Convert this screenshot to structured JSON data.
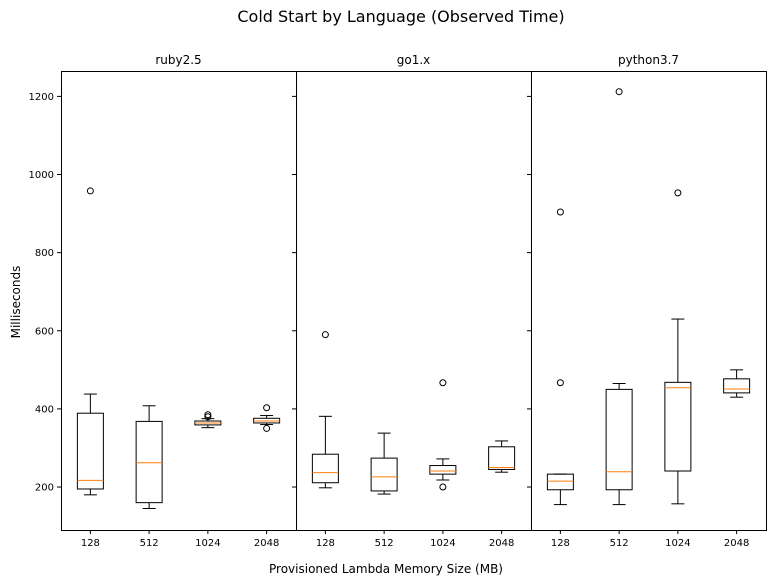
{
  "chart_data": {
    "type": "boxplot",
    "title": "Cold Start by Language (Observed Time)",
    "xlabel": "Provisioned Lambda Memory Size (MB)",
    "ylabel": "Milliseconds",
    "ylim": [
      90,
      1265
    ],
    "yticks": [
      200,
      400,
      600,
      800,
      1000,
      1200
    ],
    "categories": [
      "128",
      "512",
      "1024",
      "2048"
    ],
    "colors": {
      "box": "#000000",
      "median": "#ff7f0e",
      "axis": "#000000",
      "background": "#ffffff"
    },
    "panels": [
      {
        "title": "ruby2.5",
        "boxes": [
          {
            "category": "128",
            "whisker_low": 180,
            "q1": 195,
            "median": 217,
            "q3": 389,
            "whisker_high": 438,
            "fliers": [
              958
            ]
          },
          {
            "category": "512",
            "whisker_low": 145,
            "q1": 160,
            "median": 262,
            "q3": 368,
            "whisker_high": 408,
            "fliers": []
          },
          {
            "category": "1024",
            "whisker_low": 352,
            "q1": 359,
            "median": 364,
            "q3": 369,
            "whisker_high": 375,
            "fliers": [
              380,
              385
            ]
          },
          {
            "category": "2048",
            "whisker_low": 360,
            "q1": 364,
            "median": 369,
            "q3": 376,
            "whisker_high": 383,
            "fliers": [
              350,
              403
            ]
          }
        ]
      },
      {
        "title": "go1.x",
        "boxes": [
          {
            "category": "128",
            "whisker_low": 198,
            "q1": 211,
            "median": 237,
            "q3": 284,
            "whisker_high": 381,
            "fliers": [
              590
            ]
          },
          {
            "category": "512",
            "whisker_low": 182,
            "q1": 190,
            "median": 226,
            "q3": 274,
            "whisker_high": 338,
            "fliers": []
          },
          {
            "category": "1024",
            "whisker_low": 218,
            "q1": 233,
            "median": 241,
            "q3": 255,
            "whisker_high": 272,
            "fliers": [
              200,
              467
            ]
          },
          {
            "category": "2048",
            "whisker_low": 238,
            "q1": 245,
            "median": 250,
            "q3": 303,
            "whisker_high": 318,
            "fliers": []
          }
        ]
      },
      {
        "title": "python3.7",
        "boxes": [
          {
            "category": "128",
            "whisker_low": 155,
            "q1": 193,
            "median": 215,
            "q3": 233,
            "whisker_high": 233,
            "fliers": [
              467,
              904
            ]
          },
          {
            "category": "512",
            "whisker_low": 155,
            "q1": 193,
            "median": 239,
            "q3": 450,
            "whisker_high": 465,
            "fliers": [
              1212
            ]
          },
          {
            "category": "1024",
            "whisker_low": 157,
            "q1": 241,
            "median": 454,
            "q3": 468,
            "whisker_high": 630,
            "fliers": [
              953
            ]
          },
          {
            "category": "2048",
            "whisker_low": 430,
            "q1": 441,
            "median": 451,
            "q3": 477,
            "whisker_high": 500,
            "fliers": []
          }
        ]
      }
    ]
  }
}
